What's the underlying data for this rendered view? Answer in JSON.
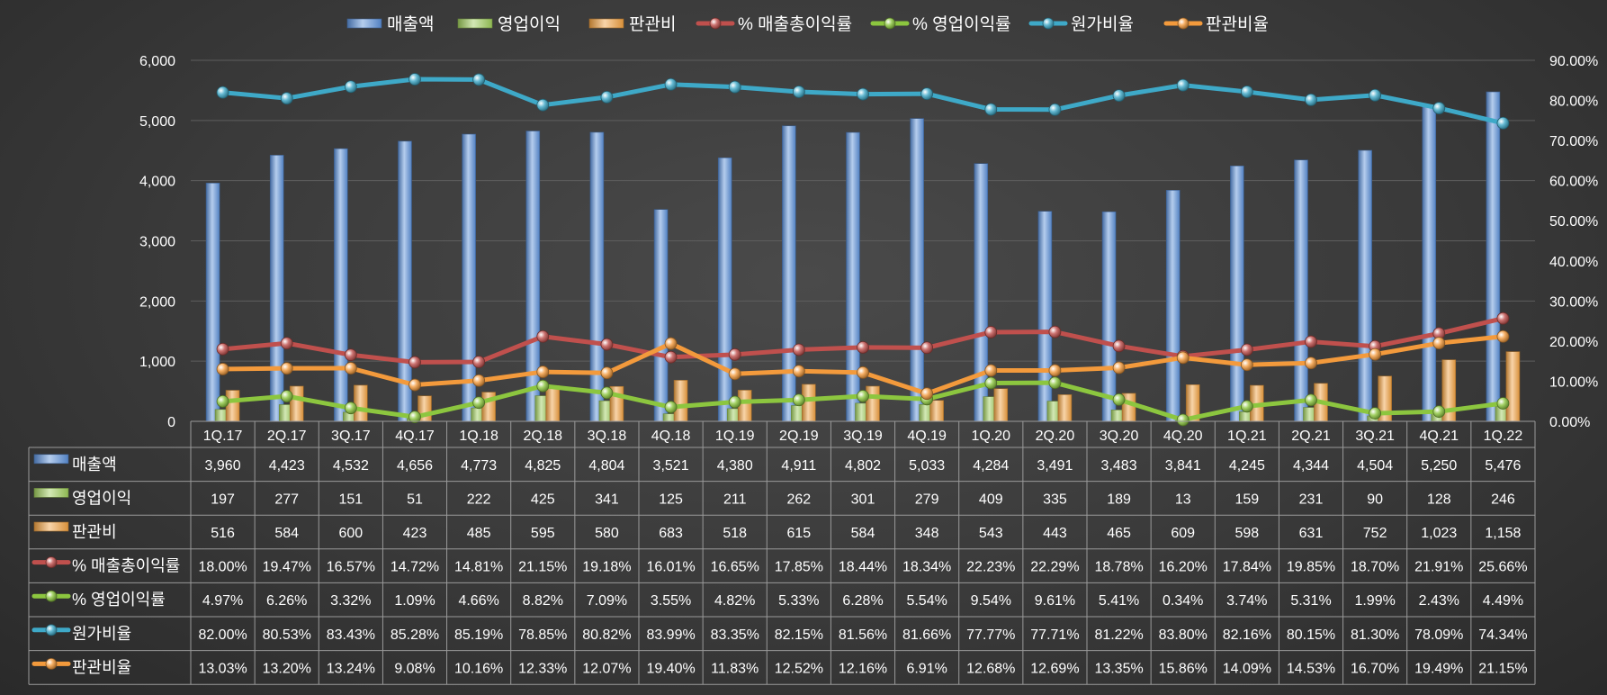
{
  "chart_data": {
    "type": "bar",
    "categories": [
      "1Q.17",
      "2Q.17",
      "3Q.17",
      "4Q.17",
      "1Q.18",
      "2Q.18",
      "3Q.18",
      "4Q.18",
      "1Q.19",
      "2Q.19",
      "3Q.19",
      "4Q.19",
      "1Q.20",
      "2Q.20",
      "3Q.20",
      "4Q.20",
      "1Q.21",
      "2Q.21",
      "3Q.21",
      "4Q.21",
      "1Q.22"
    ],
    "ylim": [
      0,
      6000
    ],
    "y2lim": [
      0,
      90
    ],
    "y_ticks": [
      "0",
      "1,000",
      "2,000",
      "3,000",
      "4,000",
      "5,000",
      "6,000"
    ],
    "y2_ticks": [
      "0.00%",
      "10.00%",
      "20.00%",
      "30.00%",
      "40.00%",
      "50.00%",
      "60.00%",
      "70.00%",
      "80.00%",
      "90.00%"
    ],
    "grid": true,
    "legend_position": "top",
    "bar_series": [
      {
        "name": "매출액",
        "color": "#5b8fd8",
        "values": [
          3960,
          4423,
          4532,
          4656,
          4773,
          4825,
          4804,
          3521,
          4380,
          4911,
          4802,
          5033,
          4284,
          3491,
          3483,
          3841,
          4245,
          4344,
          4504,
          5250,
          5476
        ],
        "labels": [
          "3,960",
          "4,423",
          "4,532",
          "4,656",
          "4,773",
          "4,825",
          "4,804",
          "3,521",
          "4,380",
          "4,911",
          "4,802",
          "5,033",
          "4,284",
          "3,491",
          "3,483",
          "3,841",
          "4,245",
          "4,344",
          "4,504",
          "5,250",
          "5,476"
        ]
      },
      {
        "name": "영업이익",
        "color": "#9dcb5a",
        "values": [
          197,
          277,
          151,
          51,
          222,
          425,
          341,
          125,
          211,
          262,
          301,
          279,
          409,
          335,
          189,
          13,
          159,
          231,
          90,
          128,
          246
        ],
        "labels": [
          "197",
          "277",
          "151",
          "51",
          "222",
          "425",
          "341",
          "125",
          "211",
          "262",
          "301",
          "279",
          "409",
          "335",
          "189",
          "13",
          "159",
          "231",
          "90",
          "128",
          "246"
        ]
      },
      {
        "name": "판관비",
        "color": "#f0a040",
        "values": [
          516,
          584,
          600,
          423,
          485,
          595,
          580,
          683,
          518,
          615,
          584,
          348,
          543,
          443,
          465,
          609,
          598,
          631,
          752,
          1023,
          1158
        ],
        "labels": [
          "516",
          "584",
          "600",
          "423",
          "485",
          "595",
          "580",
          "683",
          "518",
          "615",
          "584",
          "348",
          "543",
          "443",
          "465",
          "609",
          "598",
          "631",
          "752",
          "1,023",
          "1,158"
        ]
      }
    ],
    "line_series": [
      {
        "name": "% 매출총이익률",
        "color": "#c0504d",
        "values": [
          18.0,
          19.47,
          16.57,
          14.72,
          14.81,
          21.15,
          19.18,
          16.01,
          16.65,
          17.85,
          18.44,
          18.34,
          22.23,
          22.29,
          18.78,
          16.2,
          17.84,
          19.85,
          18.7,
          21.91,
          25.66
        ],
        "labels": [
          "18.00%",
          "19.47%",
          "16.57%",
          "14.72%",
          "14.81%",
          "21.15%",
          "19.18%",
          "16.01%",
          "16.65%",
          "17.85%",
          "18.44%",
          "18.34%",
          "22.23%",
          "22.29%",
          "18.78%",
          "16.20%",
          "17.84%",
          "19.85%",
          "18.70%",
          "21.91%",
          "25.66%"
        ]
      },
      {
        "name": "% 영업이익률",
        "color": "#8cc63f",
        "values": [
          4.97,
          6.26,
          3.32,
          1.09,
          4.66,
          8.82,
          7.09,
          3.55,
          4.82,
          5.33,
          6.28,
          5.54,
          9.54,
          9.61,
          5.41,
          0.34,
          3.74,
          5.31,
          1.99,
          2.43,
          4.49
        ],
        "labels": [
          "4.97%",
          "6.26%",
          "3.32%",
          "1.09%",
          "4.66%",
          "8.82%",
          "7.09%",
          "3.55%",
          "4.82%",
          "5.33%",
          "6.28%",
          "5.54%",
          "9.54%",
          "9.61%",
          "5.41%",
          "0.34%",
          "3.74%",
          "5.31%",
          "1.99%",
          "2.43%",
          "4.49%"
        ]
      },
      {
        "name": "원가비율",
        "color": "#3ea9c8",
        "values": [
          82.0,
          80.53,
          83.43,
          85.28,
          85.19,
          78.85,
          80.82,
          83.99,
          83.35,
          82.15,
          81.56,
          81.66,
          77.77,
          77.71,
          81.22,
          83.8,
          82.16,
          80.15,
          81.3,
          78.09,
          74.34
        ],
        "labels": [
          "82.00%",
          "80.53%",
          "83.43%",
          "85.28%",
          "85.19%",
          "78.85%",
          "80.82%",
          "83.99%",
          "83.35%",
          "82.15%",
          "81.56%",
          "81.66%",
          "77.77%",
          "77.71%",
          "81.22%",
          "83.80%",
          "82.16%",
          "80.15%",
          "81.30%",
          "78.09%",
          "74.34%"
        ]
      },
      {
        "name": "판관비율",
        "color": "#f39a3c",
        "values": [
          13.03,
          13.2,
          13.24,
          9.08,
          10.16,
          12.33,
          12.07,
          19.4,
          11.83,
          12.52,
          12.16,
          6.91,
          12.68,
          12.69,
          13.35,
          15.86,
          14.09,
          14.53,
          16.7,
          19.49,
          21.15
        ],
        "labels": [
          "13.03%",
          "13.20%",
          "13.24%",
          "9.08%",
          "10.16%",
          "12.33%",
          "12.07%",
          "19.40%",
          "11.83%",
          "12.52%",
          "12.16%",
          "6.91%",
          "12.68%",
          "12.69%",
          "13.35%",
          "15.86%",
          "14.09%",
          "14.53%",
          "16.70%",
          "19.49%",
          "21.15%"
        ]
      }
    ]
  }
}
